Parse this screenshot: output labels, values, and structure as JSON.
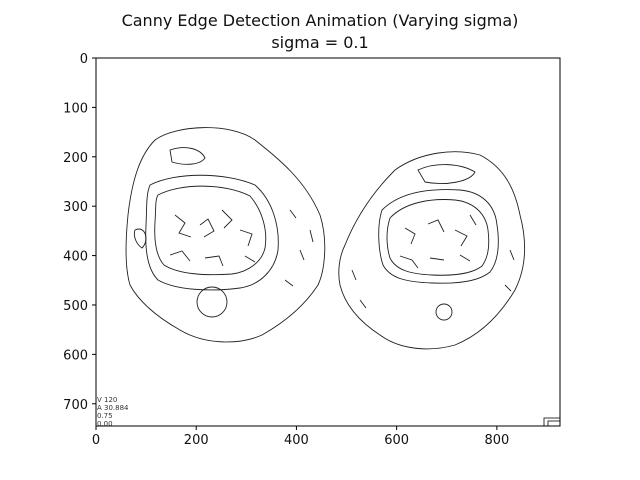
{
  "chart_data": {
    "type": "image",
    "title": "Canny Edge Detection Animation (Varying sigma)",
    "subtitle": "sigma = 0.1",
    "xlim": [
      0,
      926
    ],
    "ylim": [
      745,
      0
    ],
    "x_ticks": [
      0,
      200,
      400,
      600,
      800
    ],
    "y_ticks": [
      0,
      100,
      200,
      300,
      400,
      500,
      600,
      700
    ],
    "grid": false,
    "corner_overlay_text": [
      "V 120",
      "A 30.884",
      "0.75",
      "0.00"
    ]
  }
}
